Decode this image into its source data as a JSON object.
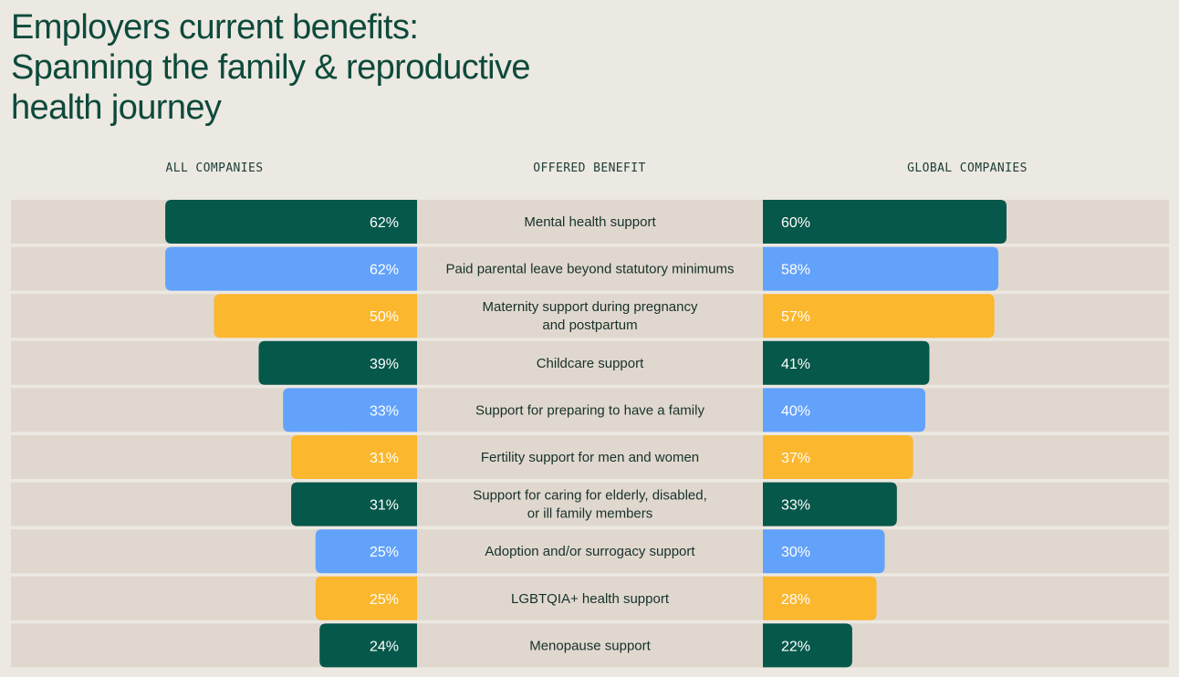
{
  "title_lines": [
    "Employers current benefits:",
    "Spanning the family & reproductive",
    "health journey"
  ],
  "headers": {
    "left": "ALL COMPANIES",
    "middle": "OFFERED BENEFIT",
    "right": "GLOBAL COMPANIES"
  },
  "colors": {
    "green": "#06584a",
    "blue": "#63a2fb",
    "yellow": "#fbb72e",
    "band": "#e0d8ce",
    "label_light": "#ffffff"
  },
  "chart_data": {
    "type": "bar",
    "title": "Employers current benefits: Spanning the family & reproductive health journey",
    "series_names": [
      "All companies",
      "Global companies"
    ],
    "categories": [
      "Mental health support",
      "Paid parental leave beyond statutory minimums",
      "Maternity support during pregnancy and postpartum",
      "Childcare support",
      "Support for preparing to have a family",
      "Fertility support for men and women",
      "Support for caring for elderly, disabled, or ill family members",
      "Adoption and/or surrogacy support",
      "LGBTQIA+ health support",
      "Menopause support"
    ],
    "category_lines": [
      [
        "Mental health support"
      ],
      [
        "Paid parental leave beyond statutory minimums"
      ],
      [
        "Maternity support during pregnancy",
        "and postpartum"
      ],
      [
        "Childcare support"
      ],
      [
        "Support for preparing to have a family"
      ],
      [
        "Fertility support for men and women"
      ],
      [
        "Support for caring for elderly, disabled,",
        "or ill family members"
      ],
      [
        "Adoption and/or surrogacy support"
      ],
      [
        "LGBTQIA+ health support"
      ],
      [
        "Menopause support"
      ]
    ],
    "all_companies": [
      62,
      62,
      50,
      39,
      33,
      31,
      31,
      25,
      25,
      24
    ],
    "global_companies": [
      60,
      58,
      57,
      41,
      40,
      37,
      33,
      30,
      28,
      22
    ],
    "all_labels": [
      "62%",
      "62%",
      "50%",
      "39%",
      "33%",
      "31%",
      "31%",
      "25%",
      "25%",
      "24%"
    ],
    "global_labels": [
      "60%",
      "58%",
      "57%",
      "41%",
      "40%",
      "37%",
      "33%",
      "30%",
      "28%",
      "22%"
    ],
    "bar_colors": [
      "green",
      "blue",
      "yellow",
      "green",
      "blue",
      "yellow",
      "green",
      "blue",
      "yellow",
      "green"
    ],
    "unit": "%"
  }
}
